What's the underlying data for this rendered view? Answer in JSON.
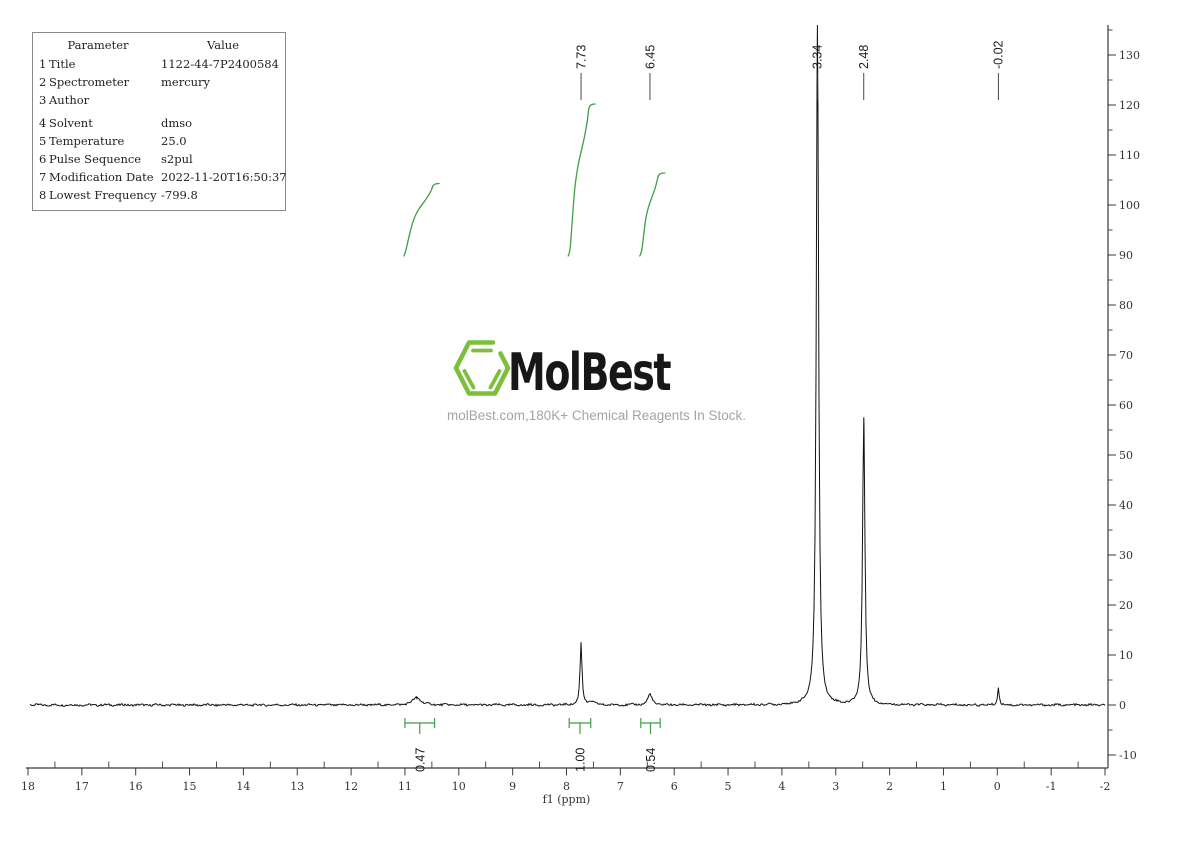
{
  "params_table": {
    "col_headers": {
      "param": "Parameter",
      "value": "Value"
    },
    "rows": [
      {
        "num": "1",
        "name": "Title",
        "value": "1122-44-7P2400584"
      },
      {
        "num": "2",
        "name": "Spectrometer",
        "value": "mercury"
      },
      {
        "num": "3",
        "name": "Author",
        "value": ""
      },
      {
        "num": "4",
        "name": "Solvent",
        "value": "dmso"
      },
      {
        "num": "5",
        "name": "Temperature",
        "value": "25.0"
      },
      {
        "num": "6",
        "name": "Pulse Sequence",
        "value": "s2pul"
      },
      {
        "num": "7",
        "name": "Modification Date",
        "value": "2022-11-20T16:50:37"
      },
      {
        "num": "8",
        "name": "Lowest Frequency",
        "value": "-799.8"
      }
    ]
  },
  "watermark": {
    "brand": "MolBest",
    "tagline": "molBest.com,180K+ Chemical Reagents In Stock.",
    "brand_color": "#171717",
    "hexagon_color": "#7cbf3b",
    "tagline_color": "#a0a4ab"
  },
  "chart_data": {
    "type": "line",
    "title": "1H NMR spectrum",
    "xlabel": "f1 (ppm)",
    "x_range": [
      18,
      -2
    ],
    "x_ticks": [
      18,
      17,
      16,
      15,
      14,
      13,
      12,
      11,
      10,
      9,
      8,
      7,
      6,
      5,
      4,
      3,
      2,
      1,
      0,
      -1,
      -2
    ],
    "y_range": [
      -12.5,
      136
    ],
    "y_ticks": [
      130,
      120,
      110,
      100,
      90,
      80,
      70,
      60,
      50,
      40,
      30,
      20,
      10,
      0,
      -10
    ],
    "grid": false,
    "axis_color": "#3a3a3a",
    "trace_color": "#111111",
    "integral_color": "#3f9e46",
    "peaks": [
      {
        "ppm": 10.78,
        "height": 1.5,
        "width_ppm": 0.09,
        "label": null
      },
      {
        "ppm": 7.73,
        "height": 12.4,
        "width_ppm": 0.022,
        "label": "7.73"
      },
      {
        "ppm": 7.53,
        "height": 0.7,
        "width_ppm": 0.05,
        "label": null
      },
      {
        "ppm": 6.45,
        "height": 2.2,
        "width_ppm": 0.046,
        "label": "6.45"
      },
      {
        "ppm": 3.34,
        "height": 136,
        "width_ppm": 0.026,
        "label": "3.34"
      },
      {
        "ppm": 2.48,
        "height": 57.6,
        "width_ppm": 0.026,
        "label": "2.48"
      },
      {
        "ppm": -0.02,
        "height": 3.4,
        "width_ppm": 0.018,
        "label": "-0.02"
      }
    ],
    "integrals": [
      {
        "value": "0.47",
        "ppm_from": 11.0,
        "ppm_to": 10.45
      },
      {
        "value": "1.00",
        "ppm_from": 7.95,
        "ppm_to": 7.55
      },
      {
        "value": "0.54",
        "ppm_from": 6.62,
        "ppm_to": 6.26
      }
    ]
  }
}
